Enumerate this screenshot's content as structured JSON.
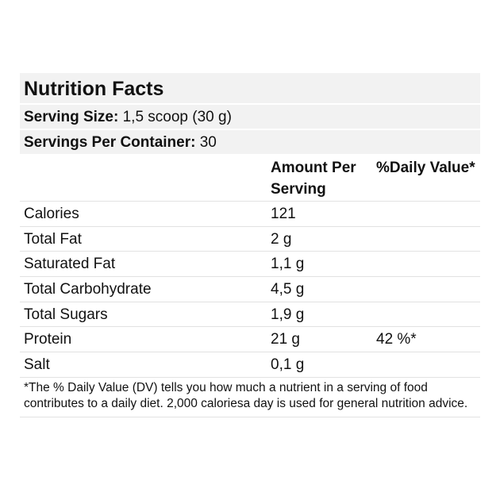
{
  "title": "Nutrition Facts",
  "serving_size": {
    "label": "Serving Size:",
    "value": "1,5 scoop (30 g)"
  },
  "servings_per_container": {
    "label": "Servings Per Container:",
    "value": "30"
  },
  "header": {
    "amount": "Amount Per Serving",
    "daily_value": "%Daily Value*"
  },
  "rows": [
    {
      "name": "Calories",
      "amount": "121"
    },
    {
      "name": "Total Fat",
      "amount": "2 g"
    },
    {
      "name": "Saturated Fat",
      "amount": "1,1 g"
    },
    {
      "name": "Total Carbohydrate",
      "amount": "4,5 g"
    },
    {
      "name": "Total Sugars",
      "amount": "1,9 g"
    },
    {
      "name": "Protein",
      "amount": "21 g",
      "daily_value": "42 %*"
    },
    {
      "name": "Salt",
      "amount": "0,1 g"
    }
  ],
  "footnote": "*The % Daily Value (DV) tells you how much a nutrient in a serving of food contributes to a daily diet. 2,000 caloriesa day is used for general nutrition advice."
}
